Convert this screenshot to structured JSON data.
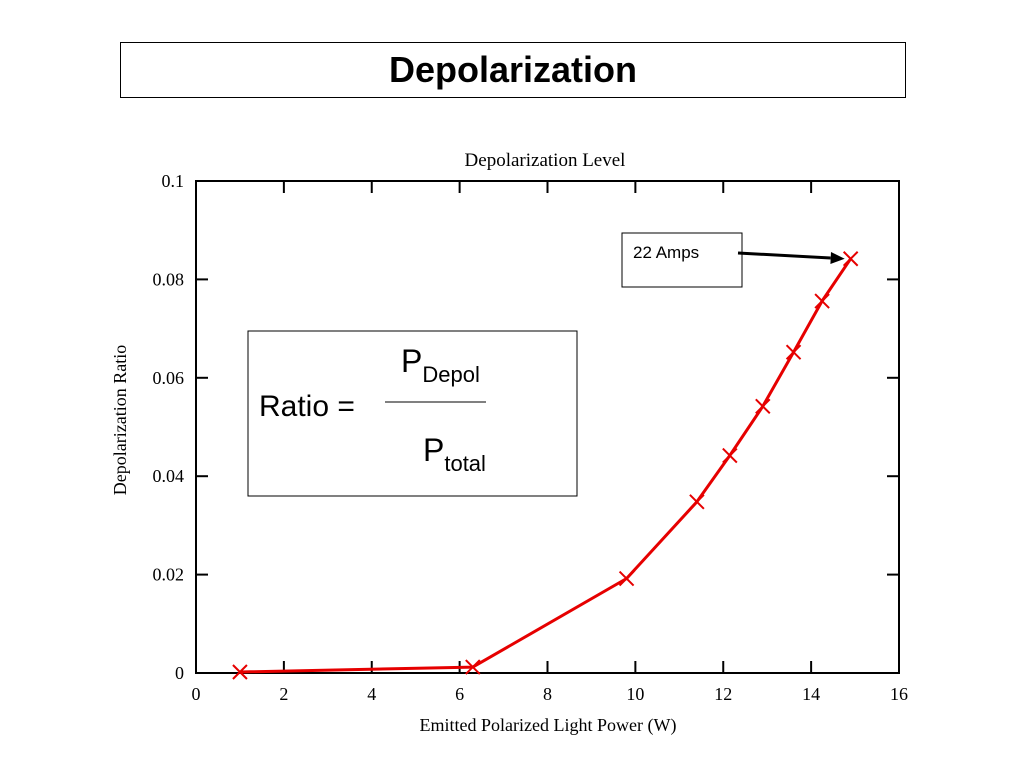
{
  "slide": {
    "title": "Depolarization"
  },
  "chart_data": {
    "type": "line",
    "title": "Depolarization Level",
    "xlabel": "Emitted Polarized Light Power (W)",
    "ylabel": "Depolarization Ratio",
    "xlim": [
      0,
      16
    ],
    "ylim": [
      0,
      0.1
    ],
    "x_ticks": [
      "0",
      "2",
      "4",
      "6",
      "8",
      "10",
      "12",
      "14",
      "16"
    ],
    "y_ticks": [
      "0",
      "0.02",
      "0.04",
      "0.06",
      "0.08",
      "0.1"
    ],
    "grid": false,
    "series": [
      {
        "color": "#e60000",
        "marker": "x",
        "x": [
          1.0,
          6.3,
          9.8,
          11.4,
          12.15,
          12.9,
          13.6,
          14.25,
          14.9
        ],
        "y": [
          0.0002,
          0.0012,
          0.0192,
          0.0348,
          0.0442,
          0.0542,
          0.0652,
          0.0756,
          0.0842
        ]
      }
    ],
    "annotations": [
      {
        "text": "22 Amps",
        "points_to": {
          "x": 14.9,
          "y": 0.0842
        }
      }
    ],
    "formula": {
      "lhs": "Ratio =",
      "numerator_main": "P",
      "numerator_sub": "Depol",
      "denominator_main": "P",
      "denominator_sub": "total"
    }
  }
}
